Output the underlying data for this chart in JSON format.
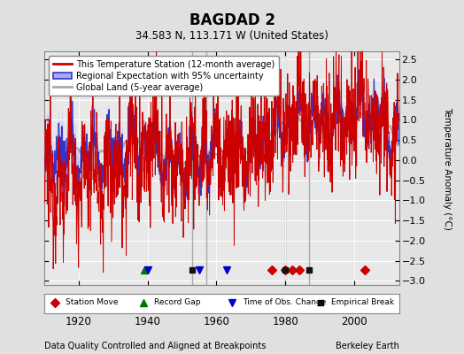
{
  "title": "BAGDAD 2",
  "subtitle": "34.583 N, 113.171 W (United States)",
  "ylabel": "Temperature Anomaly (°C)",
  "xlabel_note": "Data Quality Controlled and Aligned at Breakpoints",
  "attribution": "Berkeley Earth",
  "ylim": [
    -3.1,
    2.7
  ],
  "yticks": [
    -3,
    -2.5,
    -2,
    -1.5,
    -1,
    -0.5,
    0,
    0.5,
    1,
    1.5,
    2,
    2.5
  ],
  "xlim": [
    1910,
    2013
  ],
  "xticks": [
    1920,
    1940,
    1960,
    1980,
    2000
  ],
  "year_start": 1910,
  "year_end": 2012,
  "bg_color": "#e0e0e0",
  "plot_bg_color": "#e8e8e8",
  "grid_color": "#ffffff",
  "breakpoint_line_color": "#aaaaaa",
  "breakpoint_years": [
    1953,
    1957,
    1980,
    1987
  ],
  "station_move_years": [
    1976,
    1980,
    1982,
    1984,
    2003
  ],
  "record_gap_years": [
    1939
  ],
  "obs_change_years": [
    1940,
    1955,
    1963
  ],
  "empirical_break_years": [
    1953,
    1980,
    1987
  ],
  "legend_labels": [
    "This Temperature Station (12-month average)",
    "Regional Expectation with 95% uncertainty",
    "Global Land (5-year average)"
  ],
  "red_line_color": "#cc0000",
  "blue_fill_color": "#aaaaee",
  "blue_line_color": "#3333cc",
  "gray_line_color": "#aaaaaa",
  "marker_station_move_color": "#cc0000",
  "marker_record_gap_color": "#007700",
  "marker_obs_change_color": "#0000cc",
  "marker_empirical_break_color": "#111111",
  "seed": 12345,
  "noise_scale_station": 0.75,
  "noise_scale_regional": 0.45,
  "uncertainty_base": 0.25
}
